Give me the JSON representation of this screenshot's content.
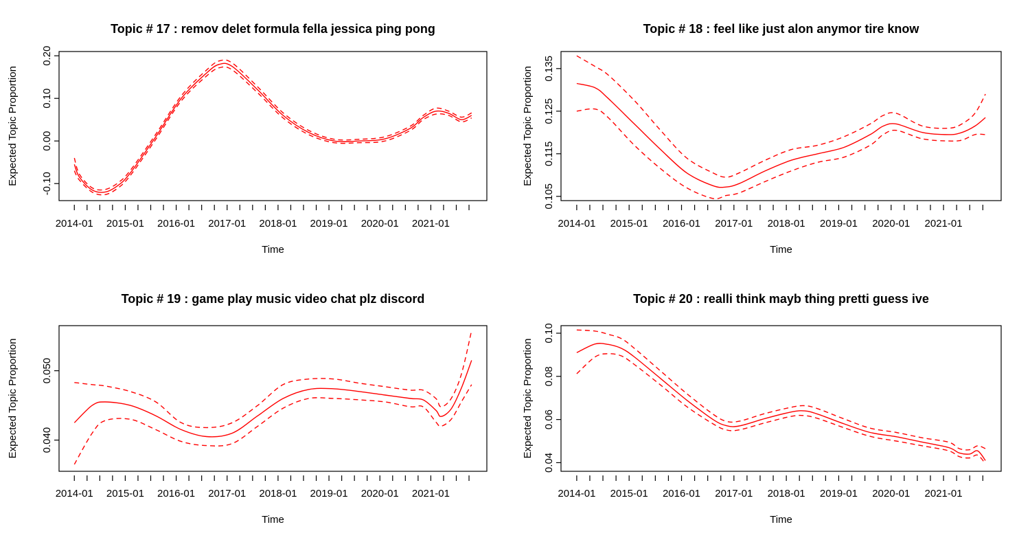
{
  "chart_data": [
    {
      "type": "line",
      "title": "Topic # 17 :  remov delet formula fella jessica ping pong",
      "xlabel": "Time",
      "ylabel": "Expected Topic Proportion",
      "x_ticks": [
        "2014-01",
        "2015-01",
        "2016-01",
        "2017-01",
        "2018-01",
        "2019-01",
        "2020-01",
        "2021-01"
      ],
      "x": [
        2013.9,
        2014.0,
        2014.25,
        2014.5,
        2014.75,
        2015.0,
        2015.5,
        2016.0,
        2016.5,
        2016.75,
        2017.0,
        2017.5,
        2018.0,
        2018.5,
        2019.0,
        2019.5,
        2020.0,
        2020.5,
        2020.75,
        2021.0,
        2021.25,
        2021.5,
        2021.7
      ],
      "ylim": [
        -0.14,
        0.21
      ],
      "y_ticks": [
        -0.1,
        0.0,
        0.1,
        0.2
      ],
      "y_tick_labels": [
        "-0.10",
        "0.00",
        "0.10",
        "0.20"
      ],
      "series": [
        {
          "role": "estimate",
          "values": [
            -0.055,
            -0.085,
            -0.115,
            -0.12,
            -0.105,
            -0.075,
            0.01,
            0.1,
            0.16,
            0.18,
            0.175,
            0.12,
            0.06,
            0.02,
            0.0,
            0.0,
            0.005,
            0.03,
            0.055,
            0.07,
            0.065,
            0.05,
            0.06
          ]
        },
        {
          "role": "upper",
          "values": [
            -0.04,
            -0.078,
            -0.11,
            -0.114,
            -0.099,
            -0.069,
            0.016,
            0.106,
            0.167,
            0.188,
            0.183,
            0.127,
            0.066,
            0.025,
            0.004,
            0.004,
            0.01,
            0.035,
            0.06,
            0.077,
            0.07,
            0.056,
            0.066
          ]
        },
        {
          "role": "lower",
          "values": [
            -0.07,
            -0.092,
            -0.12,
            -0.126,
            -0.111,
            -0.081,
            0.004,
            0.094,
            0.153,
            0.172,
            0.167,
            0.113,
            0.054,
            0.015,
            -0.004,
            -0.004,
            0.0,
            0.025,
            0.05,
            0.063,
            0.06,
            0.045,
            0.054
          ]
        }
      ]
    },
    {
      "type": "line",
      "title": "Topic # 18 :  feel like just alon anymor tire know",
      "xlabel": "Time",
      "ylabel": "Expected Topic Proportion",
      "x_ticks": [
        "2014-01",
        "2015-01",
        "2016-01",
        "2017-01",
        "2018-01",
        "2019-01",
        "2020-01",
        "2021-01"
      ],
      "x": [
        2013.9,
        2014.25,
        2014.5,
        2015.0,
        2015.5,
        2016.0,
        2016.5,
        2016.75,
        2017.0,
        2017.5,
        2018.0,
        2018.5,
        2019.0,
        2019.5,
        2019.75,
        2020.0,
        2020.5,
        2021.0,
        2021.25,
        2021.5,
        2021.7
      ],
      "ylim": [
        0.104,
        0.139
      ],
      "y_ticks": [
        0.105,
        0.115,
        0.125,
        0.135
      ],
      "y_tick_labels": [
        "0.105",
        "0.115",
        "0.125",
        "0.135"
      ],
      "series": [
        {
          "role": "estimate",
          "values": [
            0.1315,
            0.1305,
            0.128,
            0.122,
            0.116,
            0.1105,
            0.1075,
            0.1072,
            0.108,
            0.111,
            0.1135,
            0.115,
            0.1165,
            0.1195,
            0.1215,
            0.122,
            0.12,
            0.1195,
            0.12,
            0.1215,
            0.1235
          ]
        },
        {
          "role": "upper",
          "values": [
            0.138,
            0.1355,
            0.1335,
            0.1275,
            0.1205,
            0.114,
            0.1105,
            0.1095,
            0.1105,
            0.1135,
            0.116,
            0.117,
            0.119,
            0.122,
            0.124,
            0.1245,
            0.1215,
            0.121,
            0.122,
            0.1245,
            0.129
          ]
        },
        {
          "role": "lower",
          "values": [
            0.125,
            0.1255,
            0.1235,
            0.117,
            0.1115,
            0.107,
            0.1045,
            0.1052,
            0.1058,
            0.1085,
            0.111,
            0.113,
            0.1142,
            0.117,
            0.1195,
            0.1205,
            0.1185,
            0.118,
            0.1182,
            0.1195,
            0.1195
          ]
        }
      ]
    },
    {
      "type": "line",
      "title": "Topic # 19 :  game play music video chat plz discord",
      "xlabel": "Time",
      "ylabel": "Expected Topic Proportion",
      "x_ticks": [
        "2014-01",
        "2015-01",
        "2016-01",
        "2017-01",
        "2018-01",
        "2019-01",
        "2020-01",
        "2021-01"
      ],
      "x": [
        2013.9,
        2014.25,
        2014.5,
        2015.0,
        2015.5,
        2016.0,
        2016.5,
        2017.0,
        2017.5,
        2018.0,
        2018.5,
        2019.0,
        2019.5,
        2020.0,
        2020.5,
        2020.75,
        2021.0,
        2021.1,
        2021.3,
        2021.5,
        2021.7
      ],
      "ylim": [
        0.0355,
        0.0565
      ],
      "y_ticks": [
        0.04,
        0.05
      ],
      "y_tick_labels": [
        "0.040",
        "0.050"
      ],
      "series": [
        {
          "role": "estimate",
          "values": [
            0.0425,
            0.045,
            0.0455,
            0.045,
            0.0435,
            0.0415,
            0.0405,
            0.041,
            0.0435,
            0.046,
            0.0473,
            0.0474,
            0.047,
            0.0465,
            0.046,
            0.0458,
            0.0443,
            0.0434,
            0.0445,
            0.0475,
            0.0515
          ]
        },
        {
          "role": "upper",
          "values": [
            0.0483,
            0.048,
            0.0478,
            0.047,
            0.0455,
            0.0425,
            0.0418,
            0.0425,
            0.045,
            0.048,
            0.0488,
            0.0488,
            0.0482,
            0.0477,
            0.0472,
            0.0472,
            0.046,
            0.0448,
            0.046,
            0.0495,
            0.0558
          ]
        },
        {
          "role": "lower",
          "values": [
            0.0365,
            0.041,
            0.0428,
            0.043,
            0.0415,
            0.0398,
            0.0392,
            0.0395,
            0.042,
            0.0446,
            0.046,
            0.046,
            0.0458,
            0.0455,
            0.0448,
            0.0448,
            0.0426,
            0.042,
            0.043,
            0.0455,
            0.048
          ]
        }
      ]
    },
    {
      "type": "line",
      "title": "Topic # 20 :  realli think mayb thing pretti guess ive",
      "xlabel": "Time",
      "ylabel": "Expected Topic Proportion",
      "x_ticks": [
        "2014-01",
        "2015-01",
        "2016-01",
        "2017-01",
        "2018-01",
        "2019-01",
        "2020-01",
        "2021-01"
      ],
      "x": [
        2013.9,
        2014.25,
        2014.5,
        2014.75,
        2015.0,
        2015.5,
        2016.0,
        2016.5,
        2016.75,
        2017.0,
        2017.5,
        2018.0,
        2018.25,
        2018.5,
        2019.0,
        2019.5,
        2020.0,
        2020.5,
        2021.0,
        2021.2,
        2021.4,
        2021.55,
        2021.7
      ],
      "ylim": [
        0.036,
        0.1035
      ],
      "y_ticks": [
        0.04,
        0.06,
        0.08,
        0.1
      ],
      "y_tick_labels": [
        "0.04",
        "0.06",
        "0.08",
        "0.10"
      ],
      "series": [
        {
          "role": "estimate",
          "values": [
            0.091,
            0.095,
            0.0948,
            0.093,
            0.089,
            0.079,
            0.069,
            0.06,
            0.0572,
            0.057,
            0.0605,
            0.0635,
            0.064,
            0.0625,
            0.058,
            0.054,
            0.052,
            0.0495,
            0.047,
            0.0445,
            0.044,
            0.0455,
            0.041
          ]
        },
        {
          "role": "upper",
          "values": [
            0.1015,
            0.101,
            0.0995,
            0.0975,
            0.093,
            0.0825,
            0.072,
            0.0625,
            0.0592,
            0.0592,
            0.0628,
            0.0657,
            0.0664,
            0.065,
            0.0603,
            0.056,
            0.054,
            0.0515,
            0.0495,
            0.0465,
            0.046,
            0.0478,
            0.0465
          ]
        },
        {
          "role": "lower",
          "values": [
            0.0812,
            0.089,
            0.0905,
            0.0895,
            0.0855,
            0.076,
            0.066,
            0.058,
            0.0552,
            0.0552,
            0.0585,
            0.0615,
            0.0618,
            0.0605,
            0.0562,
            0.0522,
            0.05,
            0.0478,
            0.0455,
            0.0428,
            0.0422,
            0.0435,
            0.0395
          ]
        }
      ]
    }
  ]
}
